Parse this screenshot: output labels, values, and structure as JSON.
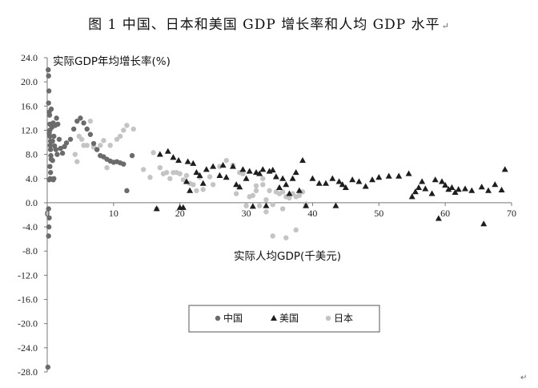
{
  "document": {
    "title": "图 1 中国、日本和美国 GDP 增长率和人均 GDP 水平",
    "return_mark": "↵",
    "corner_mark": "↵"
  },
  "chart_data": {
    "type": "scatter",
    "ylabel": "实际GDP年均增长率(%)",
    "xlabel": "实际人均GDP(千美元)",
    "xlim": [
      0,
      70
    ],
    "ylim": [
      -28,
      24
    ],
    "x_ticks": [
      0,
      10,
      20,
      30,
      40,
      50,
      60,
      70
    ],
    "y_ticks": [
      24.0,
      20.0,
      16.0,
      12.0,
      8.0,
      4.0,
      0.0,
      -4.0,
      -8.0,
      -12.0,
      -16.0,
      -20.0,
      -24.0,
      -28.0
    ],
    "grid": false,
    "legend_position": "bottom-center",
    "colors": {
      "china": "#6b6b6b",
      "us": "#1e1e1e",
      "japan": "#c4c4c4"
    },
    "series": [
      {
        "name": "中国",
        "marker": "circle",
        "points": [
          [
            0.15,
            22.0
          ],
          [
            0.2,
            21.0
          ],
          [
            0.25,
            18.5
          ],
          [
            0.2,
            16.5
          ],
          [
            0.3,
            15.0
          ],
          [
            0.35,
            14.5
          ],
          [
            0.4,
            13.0
          ],
          [
            0.3,
            11.5
          ],
          [
            0.4,
            11.0
          ],
          [
            0.5,
            10.2
          ],
          [
            0.45,
            9.5
          ],
          [
            0.5,
            8.8
          ],
          [
            0.55,
            7.8
          ],
          [
            0.6,
            7.2
          ],
          [
            0.4,
            6.0
          ],
          [
            0.5,
            5.0
          ],
          [
            0.45,
            4.0
          ],
          [
            0.3,
            3.8
          ],
          [
            0.2,
            -1.0
          ],
          [
            0.3,
            -2.5
          ],
          [
            0.25,
            -4.0
          ],
          [
            0.2,
            -5.5
          ],
          [
            0.1,
            -27.2
          ],
          [
            0.7,
            12.5
          ],
          [
            0.9,
            13.2
          ],
          [
            1.0,
            11.0
          ],
          [
            1.2,
            12.8
          ],
          [
            1.4,
            14.0
          ],
          [
            1.6,
            13.0
          ],
          [
            1.8,
            10.5
          ],
          [
            2.0,
            9.0
          ],
          [
            2.3,
            8.2
          ],
          [
            2.6,
            9.3
          ],
          [
            2.9,
            9.9
          ],
          [
            1.1,
            9.4
          ],
          [
            1.3,
            8.8
          ],
          [
            1.5,
            8.0
          ],
          [
            0.8,
            10.2
          ],
          [
            1.0,
            4.0
          ],
          [
            0.8,
            7.0
          ],
          [
            0.9,
            3.8
          ],
          [
            3.5,
            10.5
          ],
          [
            4.0,
            12.2
          ],
          [
            4.5,
            13.5
          ],
          [
            5.0,
            14.0
          ],
          [
            5.5,
            13.2
          ],
          [
            6.0,
            12.2
          ],
          [
            6.5,
            11.3
          ],
          [
            7.0,
            9.8
          ],
          [
            7.5,
            8.8
          ],
          [
            8.0,
            7.8
          ],
          [
            8.5,
            7.6
          ],
          [
            9.0,
            7.2
          ],
          [
            9.5,
            6.9
          ],
          [
            10.0,
            6.7
          ],
          [
            10.5,
            6.8
          ],
          [
            11.0,
            6.6
          ],
          [
            11.5,
            6.4
          ],
          [
            12.0,
            2.0
          ],
          [
            12.8,
            7.8
          ],
          [
            0.6,
            15.5
          ],
          [
            0.4,
            12.0
          ]
        ]
      },
      {
        "name": "美国",
        "marker": "triangle",
        "points": [
          [
            16.5,
            -1.0
          ],
          [
            17.0,
            8.0
          ],
          [
            18.2,
            8.5
          ],
          [
            19.0,
            7.5
          ],
          [
            19.8,
            7.0
          ],
          [
            20.0,
            -0.8
          ],
          [
            20.5,
            -0.8
          ],
          [
            21.0,
            3.5
          ],
          [
            21.2,
            6.8
          ],
          [
            21.5,
            2.0
          ],
          [
            22.0,
            6.5
          ],
          [
            22.5,
            5.0
          ],
          [
            23.0,
            4.5
          ],
          [
            23.5,
            3.2
          ],
          [
            24.0,
            5.5
          ],
          [
            25.0,
            6.0
          ],
          [
            26.0,
            4.5
          ],
          [
            26.5,
            6.2
          ],
          [
            27.0,
            4.2
          ],
          [
            28.0,
            6.0
          ],
          [
            28.5,
            3.0
          ],
          [
            29.0,
            2.6
          ],
          [
            29.5,
            5.5
          ],
          [
            30.0,
            4.0
          ],
          [
            30.5,
            5.2
          ],
          [
            31.0,
            -0.6
          ],
          [
            31.5,
            5.0
          ],
          [
            32.0,
            4.8
          ],
          [
            32.5,
            5.5
          ],
          [
            33.0,
            -0.5
          ],
          [
            33.5,
            5.2
          ],
          [
            34.0,
            5.4
          ],
          [
            34.5,
            4.3
          ],
          [
            35.0,
            2.5
          ],
          [
            35.5,
            4.0
          ],
          [
            36.0,
            3.0
          ],
          [
            36.5,
            1.5
          ],
          [
            37.0,
            4.0
          ],
          [
            37.5,
            5.0
          ],
          [
            38.0,
            2.0
          ],
          [
            38.5,
            7.0
          ],
          [
            39.0,
            -0.5
          ],
          [
            40.0,
            4.0
          ],
          [
            41.0,
            3.2
          ],
          [
            42.0,
            3.2
          ],
          [
            43.0,
            4.0
          ],
          [
            43.5,
            -0.5
          ],
          [
            44.0,
            3.5
          ],
          [
            44.5,
            3.0
          ],
          [
            45.0,
            2.5
          ],
          [
            46.0,
            3.8
          ],
          [
            47.0,
            3.5
          ],
          [
            48.0,
            2.7
          ],
          [
            49.0,
            3.8
          ],
          [
            50.0,
            4.2
          ],
          [
            51.5,
            4.4
          ],
          [
            53.0,
            4.4
          ],
          [
            54.5,
            4.8
          ],
          [
            55.0,
            1.0
          ],
          [
            55.5,
            1.8
          ],
          [
            56.0,
            2.5
          ],
          [
            56.5,
            3.5
          ],
          [
            57.0,
            2.3
          ],
          [
            58.0,
            1.5
          ],
          [
            58.5,
            3.8
          ],
          [
            59.0,
            -2.6
          ],
          [
            59.5,
            3.5
          ],
          [
            60.0,
            2.9
          ],
          [
            60.5,
            2.2
          ],
          [
            61.0,
            2.5
          ],
          [
            61.5,
            1.7
          ],
          [
            62.0,
            2.2
          ],
          [
            63.0,
            2.3
          ],
          [
            64.0,
            2.0
          ],
          [
            65.5,
            2.6
          ],
          [
            65.8,
            -3.5
          ],
          [
            66.5,
            2.0
          ],
          [
            67.5,
            3.0
          ],
          [
            68.5,
            2.1
          ],
          [
            69.0,
            5.5
          ]
        ]
      },
      {
        "name": "日本",
        "marker": "circle",
        "points": [
          [
            4.2,
            8.0
          ],
          [
            4.5,
            6.8
          ],
          [
            4.8,
            11.0
          ],
          [
            5.2,
            10.5
          ],
          [
            5.5,
            9.5
          ],
          [
            6.0,
            9.5
          ],
          [
            6.5,
            13.5
          ],
          [
            7.0,
            9.2
          ],
          [
            7.5,
            8.8
          ],
          [
            8.0,
            9.5
          ],
          [
            8.5,
            10.3
          ],
          [
            9.0,
            5.8
          ],
          [
            9.5,
            9.5
          ],
          [
            10.5,
            10.5
          ],
          [
            11.0,
            11.0
          ],
          [
            11.5,
            12.0
          ],
          [
            12.0,
            12.8
          ],
          [
            13.0,
            12.2
          ],
          [
            14.5,
            5.5
          ],
          [
            15.5,
            4.2
          ],
          [
            16.0,
            8.3
          ],
          [
            16.5,
            -1.0
          ],
          [
            17.0,
            5.8
          ],
          [
            17.5,
            4.8
          ],
          [
            18.0,
            5.0
          ],
          [
            18.5,
            4.0
          ],
          [
            19.0,
            5.0
          ],
          [
            19.5,
            5.0
          ],
          [
            20.0,
            4.8
          ],
          [
            20.5,
            3.8
          ],
          [
            21.0,
            4.5
          ],
          [
            21.5,
            3.2
          ],
          [
            22.0,
            3.0
          ],
          [
            22.5,
            2.0
          ],
          [
            23.0,
            4.2
          ],
          [
            23.5,
            2.2
          ],
          [
            24.5,
            4.3
          ],
          [
            25.0,
            3.0
          ],
          [
            26.0,
            6.0
          ],
          [
            27.0,
            7.0
          ],
          [
            28.0,
            6.2
          ],
          [
            28.5,
            1.5
          ],
          [
            29.0,
            5.0
          ],
          [
            29.5,
            4.8
          ],
          [
            30.0,
            -0.5
          ],
          [
            30.5,
            1.0
          ],
          [
            31.0,
            1.2
          ],
          [
            31.5,
            2.0
          ],
          [
            32.0,
            -0.5
          ],
          [
            32.5,
            3.0
          ],
          [
            33.0,
            0.5
          ],
          [
            33.5,
            2.0
          ],
          [
            34.0,
            -0.3
          ],
          [
            34.5,
            1.8
          ],
          [
            35.0,
            1.5
          ],
          [
            35.5,
            1.8
          ],
          [
            36.0,
            1.0
          ],
          [
            36.5,
            0.8
          ],
          [
            37.0,
            1.5
          ],
          [
            37.5,
            1.0
          ],
          [
            38.0,
            1.2
          ],
          [
            38.5,
            1.8
          ],
          [
            39.0,
            -0.2
          ],
          [
            34.0,
            -5.5
          ],
          [
            36.0,
            -5.8
          ],
          [
            37.5,
            -4.5
          ],
          [
            33.0,
            -1.5
          ],
          [
            35.5,
            -1.0
          ],
          [
            32.5,
            4.0
          ],
          [
            31.5,
            2.8
          ]
        ]
      }
    ]
  }
}
